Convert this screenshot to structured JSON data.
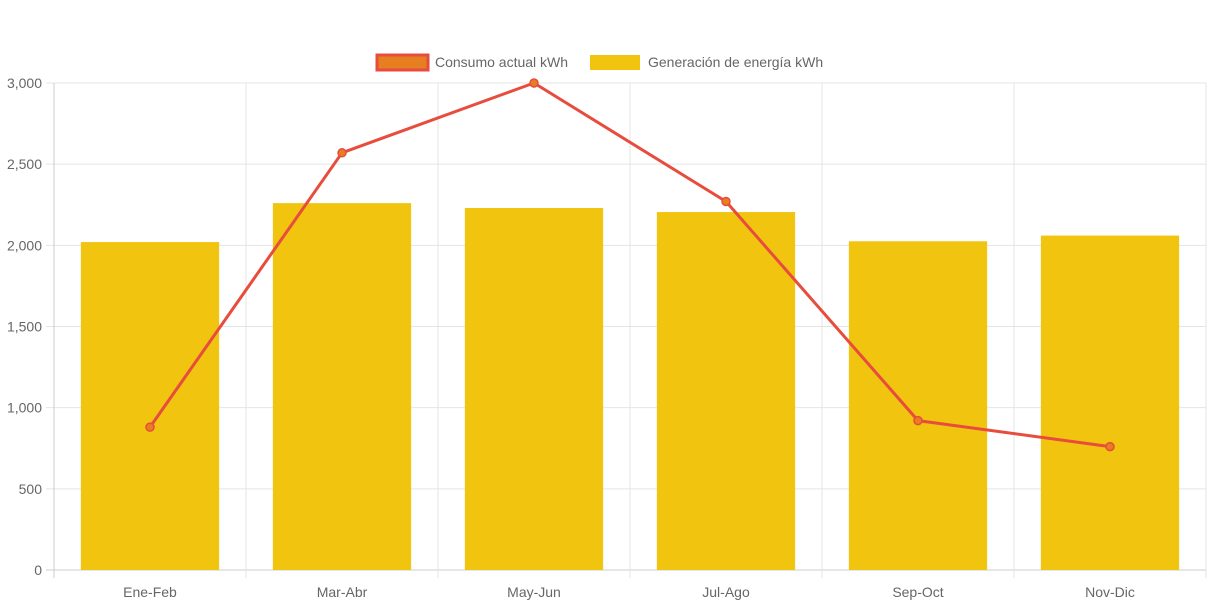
{
  "chart_data": {
    "type": "bar",
    "title": "",
    "xlabel": "",
    "ylabel": "",
    "ylim": [
      0,
      3000
    ],
    "y_ticks": [
      0,
      500,
      1000,
      1500,
      2000,
      2500,
      3000
    ],
    "y_tick_labels": [
      "0",
      "500",
      "1,000",
      "1,500",
      "2,000",
      "2,500",
      "3,000"
    ],
    "grid": true,
    "legend_position": "top-center",
    "categories": [
      "Ene-Feb",
      "Mar-Abr",
      "May-Jun",
      "Jul-Ago",
      "Sep-Oct",
      "Nov-Dic"
    ],
    "series": [
      {
        "name": "Consumo actual kWh",
        "type": "line",
        "color": "#e74c3c",
        "point_color": "#e67e22",
        "values": [
          880,
          2570,
          3000,
          2270,
          920,
          760
        ]
      },
      {
        "name": "Generación de energía kWh",
        "type": "bar",
        "color": "#f1c40f",
        "values": [
          2020,
          2260,
          2230,
          2205,
          2025,
          2060
        ]
      }
    ]
  }
}
